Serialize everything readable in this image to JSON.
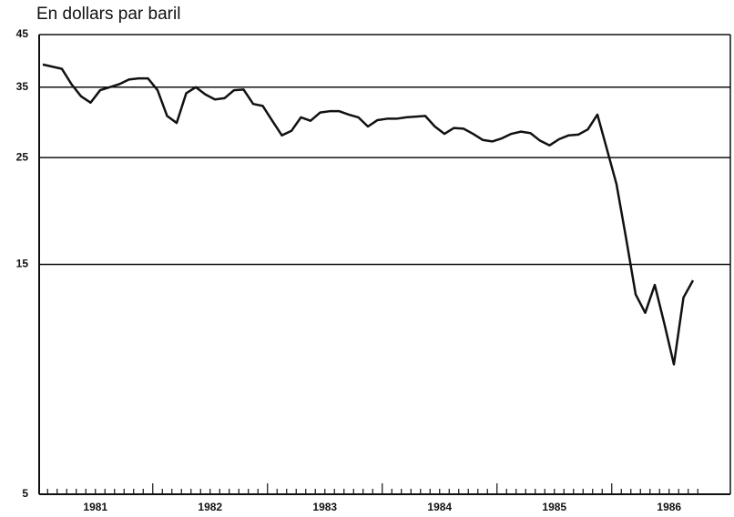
{
  "chart_data": {
    "type": "line",
    "title": "En dollars par baril",
    "categories": [
      null,
      null,
      null,
      null,
      null,
      "1981",
      null,
      null,
      null,
      null,
      null,
      null,
      null,
      null,
      null,
      null,
      null,
      "1982",
      null,
      null,
      null,
      null,
      null,
      null,
      null,
      null,
      null,
      null,
      null,
      "1983",
      null,
      null,
      null,
      null,
      null,
      null,
      null,
      null,
      null,
      null,
      null,
      "1984",
      null,
      null,
      null,
      null,
      null,
      null,
      null,
      null,
      null,
      null,
      null,
      "1985",
      null,
      null,
      null,
      null,
      null,
      null,
      null,
      null,
      null,
      null,
      null,
      "1986",
      null,
      null,
      null
    ],
    "series": [
      {
        "name": null,
        "color": "#111111",
        "values": [
          39,
          38.6,
          38.2,
          35.5,
          33.5,
          32.5,
          34.5,
          35,
          35.5,
          36.3,
          36.5,
          36.5,
          34.5,
          30.5,
          29.5,
          34,
          35,
          33.8,
          33,
          33.2,
          34.5,
          34.6,
          32.3,
          32,
          29.8,
          27.8,
          28.4,
          30.3,
          29.8,
          31,
          31.2,
          31.2,
          30.7,
          30.3,
          29,
          29.9,
          30.1,
          30.1,
          30.3,
          30.4,
          30.5,
          29,
          28,
          28.8,
          28.7,
          28,
          27.2,
          27,
          27.4,
          28,
          28.3,
          28.1,
          27.1,
          26.5,
          27.3,
          27.8,
          27.9,
          28.6,
          30.7,
          26,
          22,
          17,
          13,
          11.9,
          13.6,
          11.3,
          9.3,
          12.8,
          13.9
        ]
      }
    ],
    "ylim": [
      5,
      45
    ],
    "yticks": [
      5,
      15,
      25,
      35,
      45
    ],
    "log_y": true,
    "grid": true
  }
}
